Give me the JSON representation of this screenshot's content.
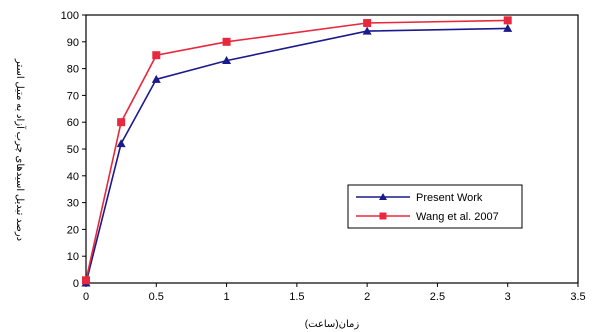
{
  "chart_data": {
    "type": "line",
    "title": "",
    "xlabel": "زمان(ساعت)",
    "ylabel": "درصد تبدیل اسیدهای چرب آزاد به متیل استر",
    "xlim": [
      0,
      3.5
    ],
    "ylim": [
      0,
      100
    ],
    "xticks": [
      "0",
      "0.5",
      "1",
      "1.5",
      "2",
      "2.5",
      "3",
      "3.5"
    ],
    "yticks": [
      "0",
      "10",
      "20",
      "30",
      "40",
      "50",
      "60",
      "70",
      "80",
      "90",
      "100"
    ],
    "grid": false,
    "legend_position": "lower-right",
    "series": [
      {
        "name": "Present Work",
        "color": "#1a1a8c",
        "marker": "triangle",
        "x": [
          0,
          0.25,
          0.5,
          1,
          2,
          3
        ],
        "y": [
          0,
          52,
          76,
          83,
          94,
          95
        ]
      },
      {
        "name": "Wang et al. 2007",
        "color": "#e8283c",
        "marker": "square",
        "x": [
          0,
          0.25,
          0.5,
          1,
          2,
          3
        ],
        "y": [
          1,
          60,
          85,
          90,
          97,
          98
        ]
      }
    ]
  }
}
